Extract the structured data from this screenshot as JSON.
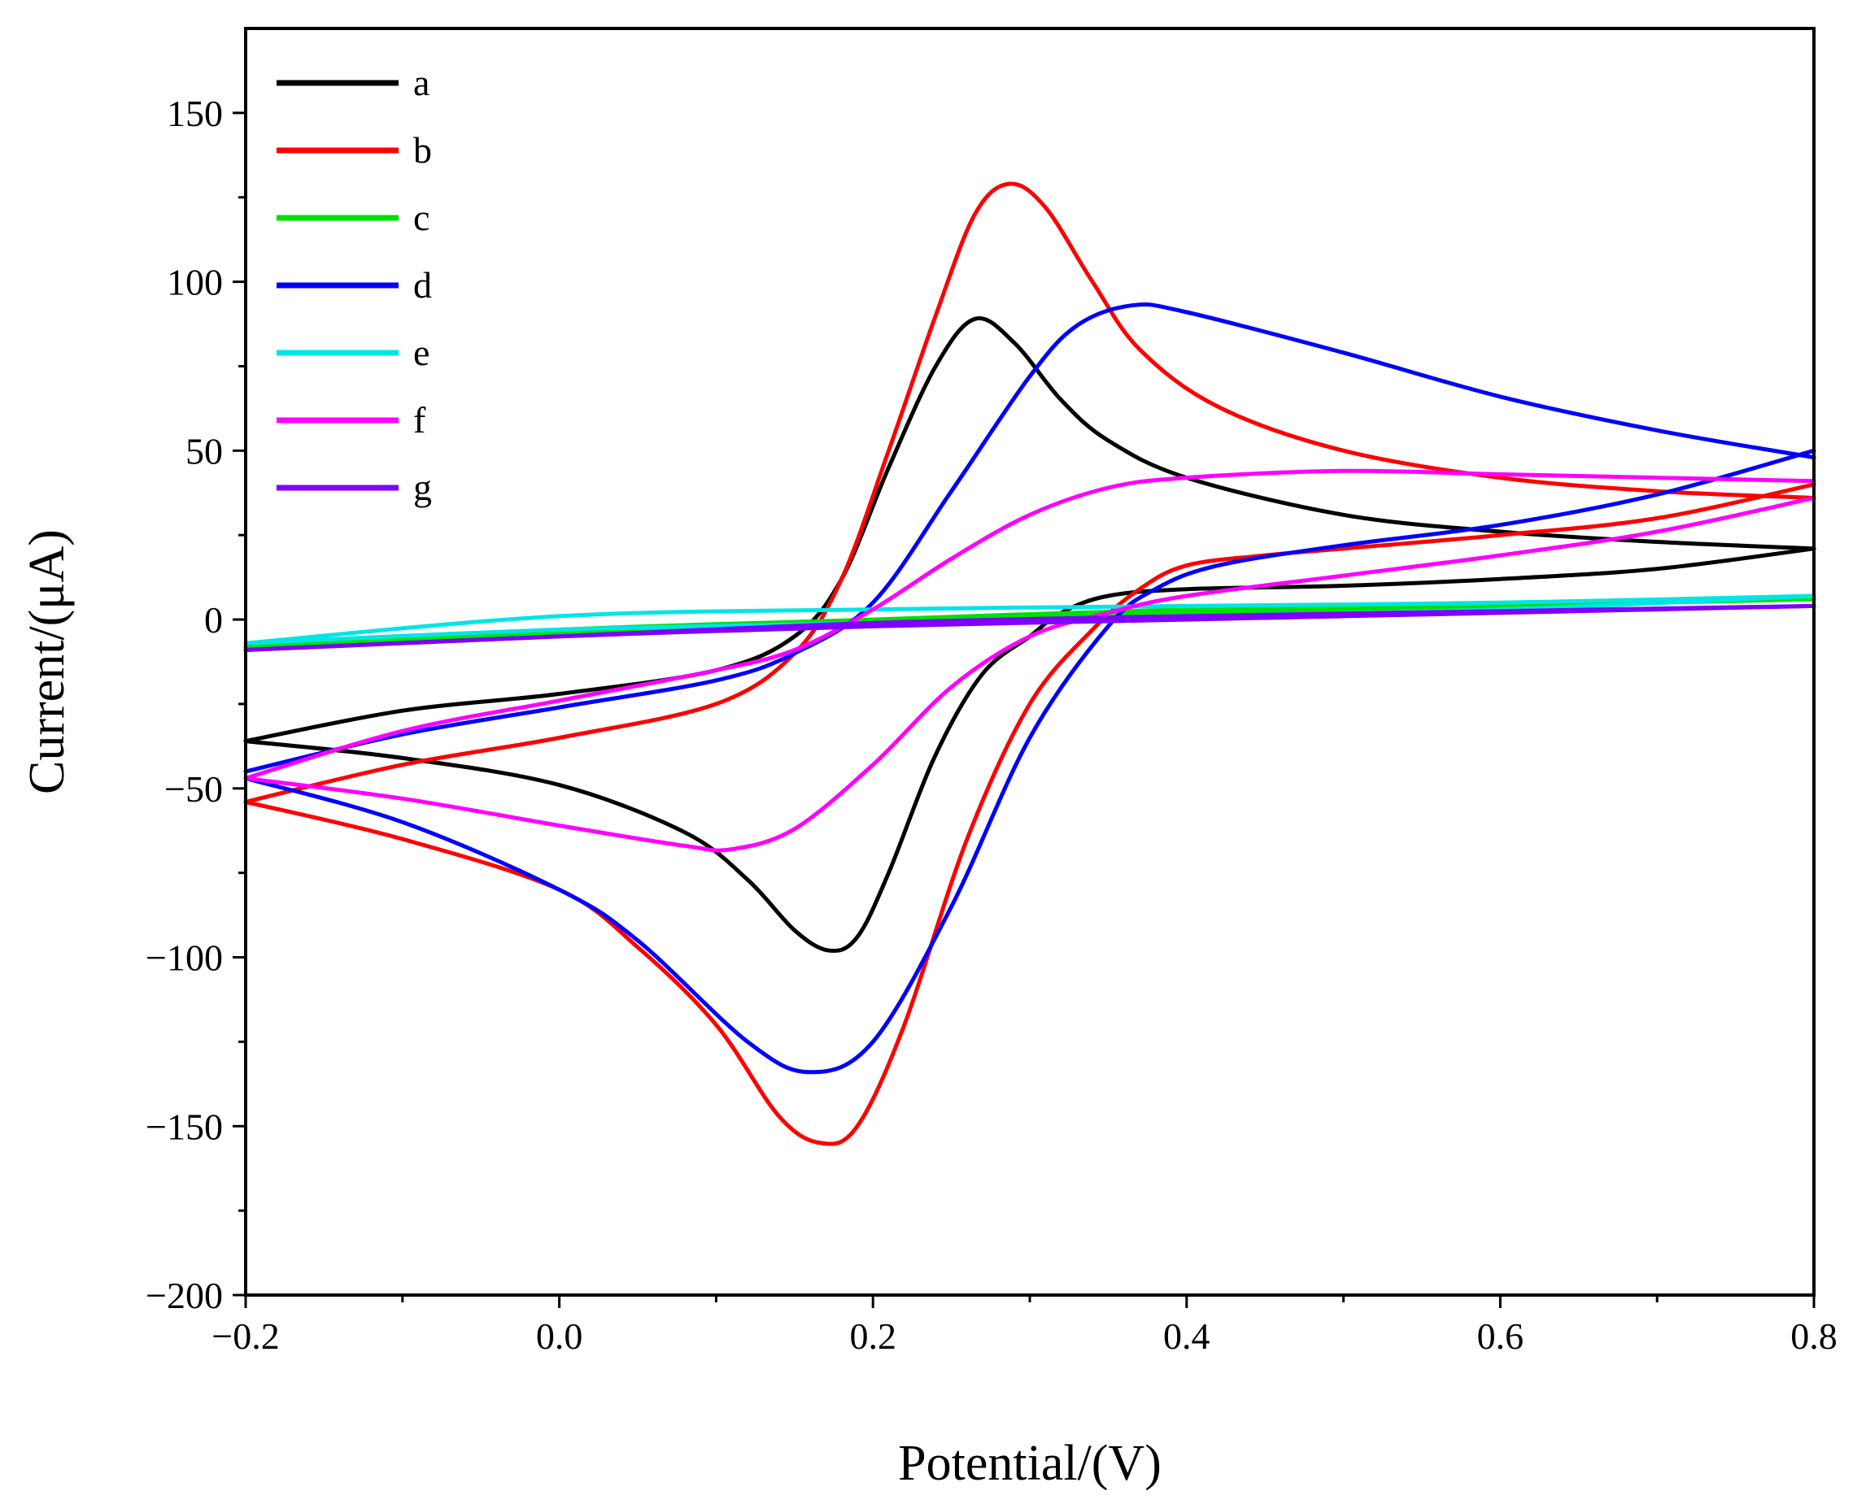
{
  "chart_data": {
    "type": "line",
    "title": "",
    "xlabel": "Potential/(V)",
    "ylabel": "Current/(μA)",
    "xlim": [
      -0.2,
      0.8
    ],
    "ylim": [
      -200,
      175
    ],
    "xticks": [
      -0.2,
      0.0,
      0.2,
      0.4,
      0.6,
      0.8
    ],
    "xtick_labels": [
      "−0.2",
      "0.0",
      "0.2",
      "0.4",
      "0.6",
      "0.8"
    ],
    "yticks": [
      -200,
      -150,
      -100,
      -50,
      0,
      50,
      100,
      150
    ],
    "ytick_labels": [
      "−200",
      "−150",
      "−100",
      "−50",
      "0",
      "50",
      "100",
      "150"
    ],
    "grid": false,
    "legend_position": "top-left",
    "series": [
      {
        "name": "a",
        "color": "#000000",
        "forward": [
          [
            -0.2,
            -36
          ],
          [
            -0.1,
            -27
          ],
          [
            0.0,
            -22
          ],
          [
            0.1,
            -15
          ],
          [
            0.15,
            -5
          ],
          [
            0.18,
            12
          ],
          [
            0.21,
            45
          ],
          [
            0.24,
            75
          ],
          [
            0.265,
            89
          ],
          [
            0.29,
            82
          ],
          [
            0.32,
            65
          ],
          [
            0.35,
            53
          ],
          [
            0.4,
            42
          ],
          [
            0.5,
            31
          ],
          [
            0.6,
            26
          ],
          [
            0.7,
            23
          ],
          [
            0.8,
            21
          ]
        ],
        "reverse": [
          [
            0.8,
            21
          ],
          [
            0.7,
            15
          ],
          [
            0.6,
            12
          ],
          [
            0.5,
            10
          ],
          [
            0.4,
            9
          ],
          [
            0.35,
            7
          ],
          [
            0.32,
            2
          ],
          [
            0.3,
            -5
          ],
          [
            0.27,
            -16
          ],
          [
            0.24,
            -40
          ],
          [
            0.21,
            -75
          ],
          [
            0.19,
            -94
          ],
          [
            0.172,
            -98
          ],
          [
            0.15,
            -92
          ],
          [
            0.12,
            -77
          ],
          [
            0.08,
            -63
          ],
          [
            0.0,
            -49
          ],
          [
            -0.1,
            -41
          ],
          [
            -0.2,
            -36
          ]
        ]
      },
      {
        "name": "b",
        "color": "#ff0000",
        "forward": [
          [
            -0.2,
            -54
          ],
          [
            -0.1,
            -43
          ],
          [
            0.0,
            -35
          ],
          [
            0.1,
            -25
          ],
          [
            0.15,
            -10
          ],
          [
            0.18,
            12
          ],
          [
            0.21,
            50
          ],
          [
            0.24,
            90
          ],
          [
            0.265,
            120
          ],
          [
            0.287,
            129
          ],
          [
            0.31,
            122
          ],
          [
            0.34,
            100
          ],
          [
            0.37,
            80
          ],
          [
            0.42,
            63
          ],
          [
            0.5,
            50
          ],
          [
            0.6,
            42
          ],
          [
            0.7,
            38
          ],
          [
            0.8,
            36
          ]
        ],
        "reverse": [
          [
            0.8,
            40
          ],
          [
            0.7,
            30
          ],
          [
            0.6,
            25
          ],
          [
            0.5,
            21
          ],
          [
            0.45,
            19
          ],
          [
            0.4,
            16
          ],
          [
            0.37,
            9
          ],
          [
            0.34,
            -3
          ],
          [
            0.3,
            -25
          ],
          [
            0.26,
            -65
          ],
          [
            0.22,
            -120
          ],
          [
            0.19,
            -150
          ],
          [
            0.167,
            -155
          ],
          [
            0.14,
            -147
          ],
          [
            0.1,
            -120
          ],
          [
            0.05,
            -97
          ],
          [
            0.0,
            -80
          ],
          [
            -0.1,
            -65
          ],
          [
            -0.2,
            -54
          ]
        ]
      },
      {
        "name": "c",
        "color": "#00e000",
        "forward": [
          [
            -0.2,
            -8
          ],
          [
            0.0,
            -3
          ],
          [
            0.2,
            0
          ],
          [
            0.4,
            3
          ],
          [
            0.6,
            4.5
          ],
          [
            0.8,
            6
          ]
        ],
        "reverse": [
          [
            0.8,
            6
          ],
          [
            0.6,
            4
          ],
          [
            0.4,
            2
          ],
          [
            0.2,
            -1
          ],
          [
            0.0,
            -4
          ],
          [
            -0.2,
            -8
          ]
        ]
      },
      {
        "name": "d",
        "color": "#0000ff",
        "forward": [
          [
            -0.2,
            -45
          ],
          [
            -0.1,
            -34
          ],
          [
            0.0,
            -26
          ],
          [
            0.1,
            -18
          ],
          [
            0.15,
            -10
          ],
          [
            0.2,
            5
          ],
          [
            0.25,
            38
          ],
          [
            0.3,
            72
          ],
          [
            0.33,
            87
          ],
          [
            0.365,
            93
          ],
          [
            0.4,
            91
          ],
          [
            0.5,
            79
          ],
          [
            0.6,
            66
          ],
          [
            0.7,
            56
          ],
          [
            0.8,
            48
          ]
        ],
        "reverse": [
          [
            0.8,
            50
          ],
          [
            0.7,
            37
          ],
          [
            0.6,
            28
          ],
          [
            0.5,
            22
          ],
          [
            0.42,
            16
          ],
          [
            0.38,
            9
          ],
          [
            0.35,
            -2
          ],
          [
            0.3,
            -35
          ],
          [
            0.25,
            -85
          ],
          [
            0.2,
            -125
          ],
          [
            0.16,
            -134
          ],
          [
            0.12,
            -125
          ],
          [
            0.05,
            -95
          ],
          [
            0.0,
            -80
          ],
          [
            -0.1,
            -60
          ],
          [
            -0.2,
            -47
          ]
        ]
      },
      {
        "name": "e",
        "color": "#00e5e5",
        "forward": [
          [
            -0.2,
            -7
          ],
          [
            0.0,
            1
          ],
          [
            0.2,
            3
          ],
          [
            0.4,
            4
          ],
          [
            0.6,
            5
          ],
          [
            0.8,
            7
          ]
        ],
        "reverse": [
          [
            0.8,
            7
          ],
          [
            0.6,
            3
          ],
          [
            0.4,
            1
          ],
          [
            0.2,
            -1
          ],
          [
            0.0,
            -3
          ],
          [
            -0.2,
            -7
          ]
        ]
      },
      {
        "name": "f",
        "color": "#ff00ff",
        "forward": [
          [
            -0.2,
            -47
          ],
          [
            -0.1,
            -33
          ],
          [
            0.0,
            -24
          ],
          [
            0.1,
            -15
          ],
          [
            0.15,
            -9
          ],
          [
            0.2,
            3
          ],
          [
            0.25,
            18
          ],
          [
            0.3,
            31
          ],
          [
            0.35,
            39
          ],
          [
            0.4,
            42
          ],
          [
            0.5,
            44
          ],
          [
            0.6,
            43
          ],
          [
            0.7,
            42
          ],
          [
            0.8,
            41
          ]
        ],
        "reverse": [
          [
            0.8,
            36
          ],
          [
            0.7,
            26
          ],
          [
            0.6,
            19
          ],
          [
            0.5,
            13
          ],
          [
            0.4,
            7
          ],
          [
            0.35,
            2
          ],
          [
            0.3,
            -5
          ],
          [
            0.25,
            -20
          ],
          [
            0.2,
            -43
          ],
          [
            0.15,
            -62
          ],
          [
            0.11,
            -68
          ],
          [
            0.08,
            -67
          ],
          [
            0.0,
            -61
          ],
          [
            -0.1,
            -53
          ],
          [
            -0.2,
            -47
          ]
        ]
      },
      {
        "name": "g",
        "color": "#7f00ff",
        "forward": [
          [
            -0.2,
            -9
          ],
          [
            0.0,
            -5
          ],
          [
            0.2,
            -1
          ],
          [
            0.4,
            1
          ],
          [
            0.6,
            2.5
          ],
          [
            0.8,
            4
          ]
        ],
        "reverse": [
          [
            0.8,
            4
          ],
          [
            0.6,
            2
          ],
          [
            0.4,
            0
          ],
          [
            0.2,
            -2
          ],
          [
            0.0,
            -5
          ],
          [
            -0.2,
            -9
          ]
        ]
      }
    ]
  }
}
